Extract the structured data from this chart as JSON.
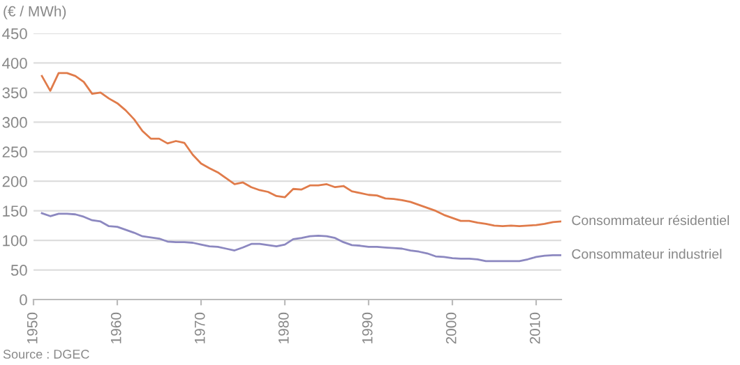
{
  "chart_data": {
    "type": "line",
    "ylabel": "(€ / MWh)",
    "x": [
      1951,
      1952,
      1953,
      1954,
      1955,
      1956,
      1957,
      1958,
      1959,
      1960,
      1961,
      1962,
      1963,
      1964,
      1965,
      1966,
      1967,
      1968,
      1969,
      1970,
      1971,
      1972,
      1973,
      1974,
      1975,
      1976,
      1977,
      1978,
      1979,
      1980,
      1981,
      1982,
      1983,
      1984,
      1985,
      1986,
      1987,
      1988,
      1989,
      1990,
      1991,
      1992,
      1993,
      1994,
      1995,
      1996,
      1997,
      1998,
      1999,
      2000,
      2001,
      2002,
      2003,
      2004,
      2005,
      2006,
      2007,
      2008,
      2009,
      2010,
      2011,
      2012,
      2013
    ],
    "series": [
      {
        "name": "Consommateur résidentiel",
        "color": "#e07b4a",
        "values": [
          378,
          353,
          383,
          383,
          378,
          368,
          348,
          350,
          340,
          332,
          320,
          305,
          285,
          272,
          272,
          264,
          268,
          265,
          245,
          230,
          222,
          215,
          205,
          195,
          198,
          190,
          185,
          182,
          175,
          173,
          187,
          186,
          193,
          193,
          195,
          190,
          192,
          183,
          180,
          177,
          176,
          171,
          170,
          168,
          165,
          160,
          155,
          150,
          143,
          138,
          133,
          133,
          130,
          128,
          125,
          124,
          125,
          124,
          125,
          126,
          128,
          131,
          132
        ]
      },
      {
        "name": "Consommateur industriel",
        "color": "#8c88c0",
        "values": [
          146,
          141,
          145,
          145,
          144,
          140,
          134,
          132,
          124,
          123,
          118,
          113,
          107,
          105,
          103,
          98,
          97,
          97,
          96,
          93,
          90,
          89,
          86,
          83,
          88,
          94,
          94,
          92,
          90,
          93,
          102,
          104,
          107,
          108,
          107,
          104,
          97,
          92,
          91,
          89,
          89,
          88,
          87,
          86,
          83,
          81,
          78,
          73,
          72,
          70,
          69,
          69,
          68,
          65,
          65,
          65,
          65,
          65,
          68,
          72,
          74,
          75,
          75
        ]
      }
    ],
    "xlim": [
      1950,
      2013
    ],
    "xticks": [
      1950,
      1960,
      1970,
      1980,
      1990,
      2000,
      2010
    ],
    "ylim": [
      0,
      450
    ],
    "yticks": [
      0,
      50,
      100,
      150,
      200,
      250,
      300,
      350,
      400,
      450
    ],
    "grid": "y",
    "legend": false,
    "marker": "none",
    "line_style": "solid",
    "annotations": [
      "Source : DGEC"
    ]
  }
}
